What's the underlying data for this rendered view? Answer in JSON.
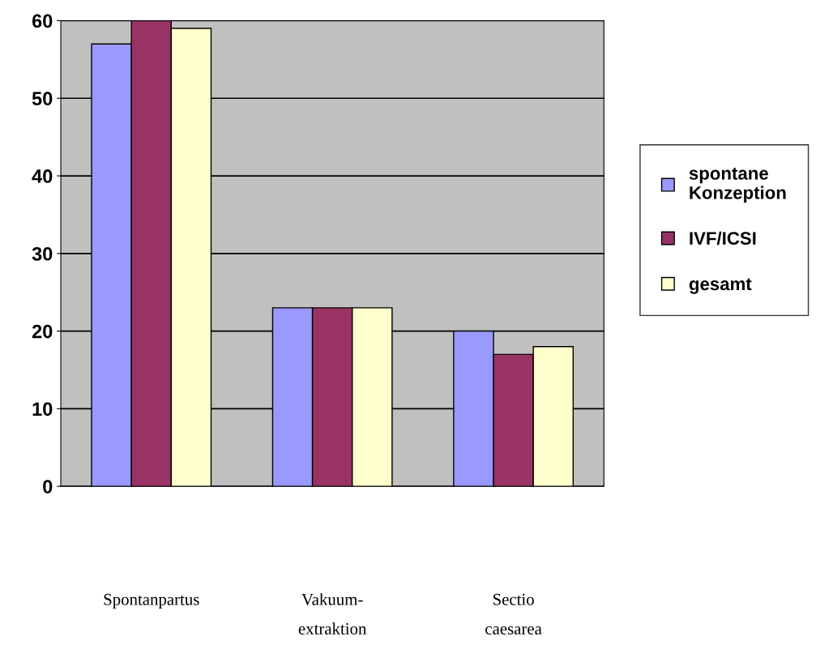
{
  "chart_data": {
    "type": "bar",
    "categories": [
      "Spontanpartus",
      "Vakuum-\nextraktion",
      "Sectio\ncaesarea"
    ],
    "series": [
      {
        "name": "spontane\nKonzeption",
        "color": "#9999ff",
        "values": [
          57,
          23,
          20
        ]
      },
      {
        "name": "IVF/ICSI",
        "color": "#993366",
        "values": [
          60,
          23,
          17
        ]
      },
      {
        "name": "gesamt",
        "color": "#ffffcc",
        "values": [
          59,
          23,
          18
        ]
      }
    ],
    "ylim": [
      0,
      60
    ],
    "yticks": [
      0,
      10,
      20,
      30,
      40,
      50,
      60
    ],
    "grid": "y",
    "legend": "right"
  }
}
